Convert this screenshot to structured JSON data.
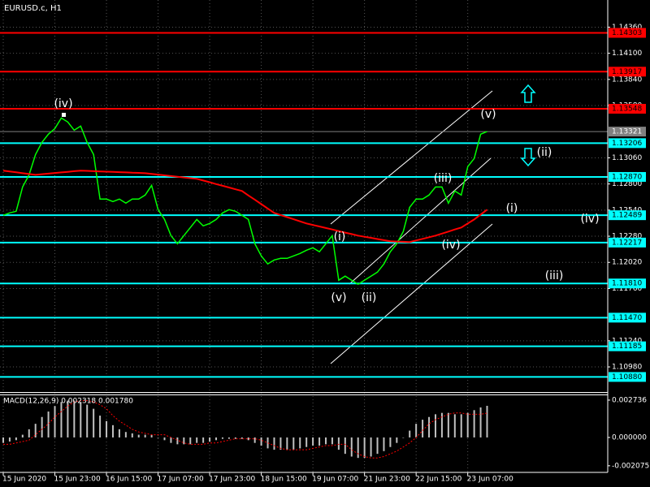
{
  "symbol": "EURUSD.c, H1",
  "annotations": [
    "(iv)",
    "(v)",
    "(ii)",
    "(iii)",
    "(i)",
    "(iv)",
    "(i)",
    "(iv)",
    "(iii)",
    "(v)",
    "(ii)"
  ],
  "chart_data": [
    {
      "type": "line",
      "categories": [
        "15 Jun 2020",
        null,
        null,
        null,
        null,
        null,
        null,
        null,
        "15 Jun 23:00",
        null,
        null,
        null,
        null,
        null,
        null,
        null,
        "16 Jun 15:00",
        null,
        null,
        null,
        null,
        null,
        null,
        null,
        "17 Jun 07:00",
        null,
        null,
        null,
        null,
        null,
        null,
        null,
        "17 Jun 23:00",
        null,
        null,
        null,
        null,
        null,
        null,
        null,
        "18 Jun 15:00",
        null,
        null,
        null,
        null,
        null,
        null,
        null,
        "19 Jun 07:00",
        null,
        null,
        null,
        null,
        null,
        null,
        null,
        "21 Jun 23:00",
        null,
        null,
        null,
        null,
        null,
        null,
        null,
        "22 Jun 15:00",
        null,
        null,
        null,
        null,
        null,
        null,
        null,
        "23 Jun 07:00",
        null,
        null,
        null
      ],
      "series": [
        {
          "color": "#00ff00",
          "values": [
            1.12488,
            1.12512,
            1.12528,
            1.1277,
            1.12891,
            1.13093,
            1.13214,
            1.13295,
            1.13351,
            1.13456,
            1.13416,
            1.13335,
            1.13375,
            1.13214,
            1.13093,
            1.12649,
            1.12649,
            1.12625,
            1.12649,
            1.12609,
            1.12649,
            1.12649,
            1.1269,
            1.12786,
            1.12544,
            1.12447,
            1.12286,
            1.12205,
            1.12286,
            1.12367,
            1.12447,
            1.12383,
            1.12407,
            1.12447,
            1.12512,
            1.12544,
            1.12528,
            1.12488,
            1.12447,
            1.12205,
            1.12084,
            1.12004,
            1.12044,
            1.1206,
            1.1206,
            1.12084,
            1.12108,
            1.12141,
            1.12165,
            1.12125,
            1.12205,
            1.12286,
            1.11842,
            1.11883,
            1.11842,
            1.11802,
            1.11842,
            1.11883,
            1.11923,
            1.12004,
            1.12125,
            1.12205,
            1.12326,
            1.12568,
            1.12649,
            1.12649,
            1.1269,
            1.1277,
            1.1277,
            1.12609,
            1.1273,
            1.1269,
            1.12972,
            1.13053,
            1.13295,
            1.13321
          ]
        },
        {
          "color": "#ff0000",
          "values": [
            1.12932,
            1.12924,
            1.12916,
            1.12907,
            1.12899,
            1.12891,
            1.12897,
            1.12903,
            1.12909,
            1.12915,
            1.12921,
            1.12927,
            1.12932,
            1.1293,
            1.12927,
            1.12925,
            1.12922,
            1.1292,
            1.12917,
            1.12915,
            1.12912,
            1.1291,
            1.12907,
            1.129,
            1.12893,
            1.12886,
            1.12879,
            1.12872,
            1.12865,
            1.12858,
            1.12851,
            1.12834,
            1.12817,
            1.12799,
            1.12782,
            1.12765,
            1.12747,
            1.1273,
            1.12686,
            1.12643,
            1.12599,
            1.12556,
            1.12512,
            1.12491,
            1.1247,
            1.12449,
            1.12428,
            1.12407,
            1.12392,
            1.12377,
            1.12362,
            1.12347,
            1.12331,
            1.12316,
            1.12301,
            1.12286,
            1.12275,
            1.12264,
            1.12252,
            1.12241,
            1.1223,
            1.12227,
            1.12225,
            1.12222,
            1.12238,
            1.12254,
            1.1227,
            1.12286,
            1.12306,
            1.12326,
            1.12347,
            1.12367,
            1.12407,
            1.12447,
            1.12496,
            1.12544
          ]
        }
      ],
      "ylim": [
        1.1073,
        1.1463
      ],
      "yticks": [
        {
          "value": 1.1436,
          "label": "1.14360"
        },
        {
          "value": 1.141,
          "label": "1.14100"
        },
        {
          "value": 1.1384,
          "label": "1.13840"
        },
        {
          "value": 1.1358,
          "label": "1.13580"
        },
        {
          "value": 1.1306,
          "label": "1.13060"
        },
        {
          "value": 1.128,
          "label": "1.12800"
        },
        {
          "value": 1.1254,
          "label": "1.12540"
        },
        {
          "value": 1.1228,
          "label": "1.12280"
        },
        {
          "value": 1.1202,
          "label": "1.12020"
        },
        {
          "value": 1.1176,
          "label": "1.11760"
        },
        {
          "value": 1.1124,
          "label": "1.11240"
        },
        {
          "value": 1.1098,
          "label": "1.10980"
        }
      ],
      "levels": [
        {
          "value": 1.14303,
          "label": "1.14303",
          "color": "#ff0000"
        },
        {
          "value": 1.13917,
          "label": "1.13917",
          "color": "#ff0000"
        },
        {
          "value": 1.13548,
          "label": "1.13548",
          "color": "#ff0000"
        },
        {
          "value": 1.13206,
          "label": "1.13206",
          "color": "#00ffff"
        },
        {
          "value": 1.1287,
          "label": "1.12870",
          "color": "#00ffff"
        },
        {
          "value": 1.12489,
          "label": "1.12489",
          "color": "#00ffff"
        },
        {
          "value": 1.12217,
          "label": "1.12217",
          "color": "#00ffff"
        },
        {
          "value": 1.1181,
          "label": "1.11810",
          "color": "#00ffff"
        },
        {
          "value": 1.1147,
          "label": "1.11470",
          "color": "#00ffff"
        },
        {
          "value": 1.11185,
          "label": "1.11185",
          "color": "#00ffff"
        },
        {
          "value": 1.1088,
          "label": "1.10880",
          "color": "#00ffff"
        }
      ],
      "current_price": 1.13321,
      "grid": true
    },
    {
      "type": "macd",
      "title": "MACD(12,26,9) 0.002318 0.001780",
      "series": [
        {
          "color": "#c0c0c0",
          "values": [
            -0.0004,
            -0.0003,
            -0.0002,
            0.0002,
            0.0006,
            0.001,
            0.0015,
            0.0019,
            0.0023,
            0.0026,
            0.0027,
            0.0027,
            0.0026,
            0.0024,
            0.0021,
            0.0016,
            0.0012,
            0.0009,
            0.0006,
            0.0004,
            0.0003,
            0.0002,
            0.0002,
            0.0002,
            0.0,
            -0.0002,
            -0.0004,
            -0.0005,
            -0.0005,
            -0.0005,
            -0.0004,
            -0.0004,
            -0.0003,
            -0.0002,
            -0.0001,
            -0.0001,
            -0.0001,
            -0.0001,
            -0.0002,
            -0.0004,
            -0.0006,
            -0.0008,
            -0.0009,
            -0.0009,
            -0.0009,
            -0.0009,
            -0.0008,
            -0.0007,
            -0.0006,
            -0.0006,
            -0.0005,
            -0.0005,
            -0.0009,
            -0.0012,
            -0.0014,
            -0.0015,
            -0.0015,
            -0.0014,
            -0.0012,
            -0.001,
            -0.0007,
            -0.0004,
            0.0,
            0.0005,
            0.001,
            0.0013,
            0.0015,
            0.0017,
            0.0018,
            0.0018,
            0.0017,
            0.0017,
            0.0018,
            0.002,
            0.0022,
            0.002318
          ]
        },
        {
          "color": "#ff0000",
          "values": [
            -0.0005,
            -0.0005,
            -0.0004,
            -0.0003,
            -0.0002,
            0.0002,
            0.0006,
            0.001,
            0.0015,
            0.0019,
            0.0023,
            0.0026,
            0.0027,
            0.0027,
            0.0026,
            0.0024,
            0.0021,
            0.0016,
            0.0012,
            0.0009,
            0.0006,
            0.0004,
            0.0003,
            0.0002,
            0.0002,
            0.0002,
            0.0,
            -0.0002,
            -0.0004,
            -0.0005,
            -0.0005,
            -0.0005,
            -0.0004,
            -0.0004,
            -0.0003,
            -0.0002,
            -0.0001,
            -0.0001,
            -0.0001,
            -0.0001,
            -0.0002,
            -0.0004,
            -0.0006,
            -0.0008,
            -0.0009,
            -0.0009,
            -0.0009,
            -0.0009,
            -0.0008,
            -0.0007,
            -0.0006,
            -0.0006,
            -0.0005,
            -0.0005,
            -0.0009,
            -0.0012,
            -0.0014,
            -0.0015,
            -0.0015,
            -0.0014,
            -0.0012,
            -0.001,
            -0.0007,
            -0.0004,
            0.0,
            0.0005,
            0.001,
            0.0013,
            0.0015,
            0.0017,
            0.0018,
            0.0018,
            0.0017,
            0.0017,
            0.0017,
            0.00178
          ]
        }
      ],
      "ylim": [
        -0.00256,
        0.00309
      ],
      "yticks": [
        {
          "value": 0.002736,
          "label": "0.002736"
        },
        {
          "value": 0,
          "label": "0.000000"
        },
        {
          "value": -0.002075,
          "label": "-0.002075"
        }
      ]
    }
  ]
}
